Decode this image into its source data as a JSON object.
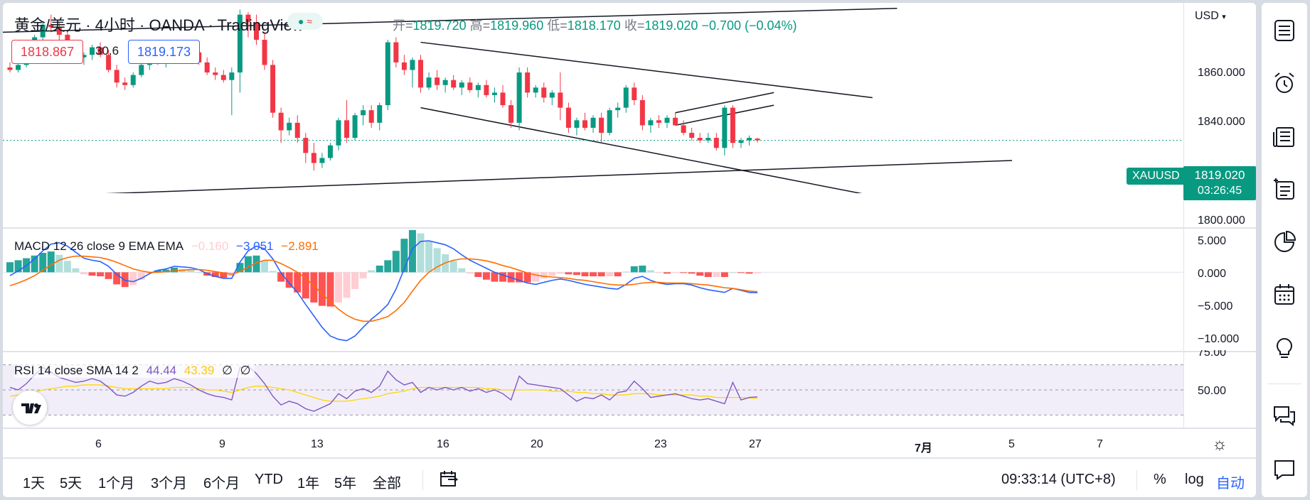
{
  "header": {
    "symbol_title": "黄金/美元 · 4小时 · OANDA · TradingView",
    "ohlc_open_label": "开=",
    "ohlc_open": "1819.720",
    "ohlc_high_label": "高=",
    "ohlc_high": "1819.960",
    "ohlc_low_label": "低=",
    "ohlc_low": "1818.170",
    "ohlc_close_label": "收=",
    "ohlc_close": "1819.020",
    "ohlc_change": "−0.700 (−0.04%)",
    "bid": "1818.867",
    "spread": "30.6",
    "ask": "1819.173",
    "currency": "USD"
  },
  "price_axis": {
    "ticks": [
      "1860.000",
      "1840.000",
      "1800.000"
    ],
    "symbol_tag": "XAUUSD",
    "last_price": "1819.020",
    "countdown": "03:26:45"
  },
  "macd": {
    "legend_name": "MACD 12 26 close 9 EMA EMA",
    "hist_value": "−0.160",
    "macd_value": "−3.051",
    "signal_value": "−2.891",
    "ticks": [
      "5.000",
      "0.000",
      "−5.000",
      "−10.000"
    ]
  },
  "rsi": {
    "legend_name": "RSI 14 close SMA 14 2",
    "rsi_value": "44.44",
    "sma_value": "43.39",
    "extra1": "∅",
    "extra2": "∅",
    "ticks": [
      "75.00",
      "50.00"
    ]
  },
  "time_axis": {
    "labels": [
      "6",
      "9",
      "13",
      "16",
      "20",
      "23",
      "27",
      "7月",
      "5",
      "7"
    ]
  },
  "bottom_bar": {
    "ranges": [
      "1天",
      "5天",
      "1个月",
      "3个月",
      "6个月",
      "YTD",
      "1年",
      "5年",
      "全部"
    ],
    "clock": "09:33:14 (UTC+8)",
    "percent": "%",
    "log": "log",
    "auto": "自动"
  },
  "right_rail": {
    "icons": [
      "watchlist-icon",
      "alarm-clock-icon",
      "news-icon",
      "order-panel-icon",
      "pie-icon",
      "calendar-icon",
      "lightbulb-icon",
      "chat-icon",
      "comment-icon"
    ]
  },
  "colors": {
    "up": "#089981",
    "down": "#f23645",
    "macd": "#2962ff",
    "signal": "#ff6d00",
    "rsi": "#7e57c2",
    "rsi_sma": "#ffd600"
  },
  "chart_data": {
    "type": "candlestick",
    "title": "黄金/美元 · 4小时 · OANDA",
    "x_tick_labels": [
      "6",
      "9",
      "13",
      "16",
      "20",
      "23",
      "27",
      "7月",
      "5",
      "7"
    ],
    "ylim": [
      1798,
      1872
    ],
    "last": 1819.02,
    "candles": [
      {
        "o": 1848,
        "h": 1850,
        "l": 1846,
        "c": 1847
      },
      {
        "o": 1847,
        "h": 1850,
        "l": 1846,
        "c": 1849
      },
      {
        "o": 1849,
        "h": 1856,
        "l": 1848,
        "c": 1855
      },
      {
        "o": 1855,
        "h": 1861,
        "l": 1853,
        "c": 1860
      },
      {
        "o": 1860,
        "h": 1866,
        "l": 1858,
        "c": 1865
      },
      {
        "o": 1865,
        "h": 1869,
        "l": 1862,
        "c": 1864
      },
      {
        "o": 1864,
        "h": 1866,
        "l": 1859,
        "c": 1861
      },
      {
        "o": 1861,
        "h": 1863,
        "l": 1855,
        "c": 1856
      },
      {
        "o": 1856,
        "h": 1858,
        "l": 1850,
        "c": 1852
      },
      {
        "o": 1852,
        "h": 1854,
        "l": 1849,
        "c": 1853
      },
      {
        "o": 1853,
        "h": 1857,
        "l": 1851,
        "c": 1856
      },
      {
        "o": 1856,
        "h": 1858,
        "l": 1852,
        "c": 1853
      },
      {
        "o": 1853,
        "h": 1855,
        "l": 1846,
        "c": 1847
      },
      {
        "o": 1847,
        "h": 1849,
        "l": 1840,
        "c": 1842
      },
      {
        "o": 1842,
        "h": 1844,
        "l": 1839,
        "c": 1841
      },
      {
        "o": 1841,
        "h": 1846,
        "l": 1840,
        "c": 1845
      },
      {
        "o": 1845,
        "h": 1850,
        "l": 1844,
        "c": 1849
      },
      {
        "o": 1849,
        "h": 1853,
        "l": 1847,
        "c": 1852
      },
      {
        "o": 1852,
        "h": 1855,
        "l": 1849,
        "c": 1851
      },
      {
        "o": 1851,
        "h": 1854,
        "l": 1848,
        "c": 1853
      },
      {
        "o": 1853,
        "h": 1857,
        "l": 1851,
        "c": 1856
      },
      {
        "o": 1856,
        "h": 1857,
        "l": 1851,
        "c": 1852
      },
      {
        "o": 1852,
        "h": 1855,
        "l": 1850,
        "c": 1854
      },
      {
        "o": 1854,
        "h": 1856,
        "l": 1849,
        "c": 1850
      },
      {
        "o": 1850,
        "h": 1852,
        "l": 1845,
        "c": 1846
      },
      {
        "o": 1846,
        "h": 1848,
        "l": 1843,
        "c": 1845
      },
      {
        "o": 1845,
        "h": 1847,
        "l": 1842,
        "c": 1843
      },
      {
        "o": 1843,
        "h": 1848,
        "l": 1829,
        "c": 1846
      },
      {
        "o": 1846,
        "h": 1871,
        "l": 1838,
        "c": 1869
      },
      {
        "o": 1869,
        "h": 1870,
        "l": 1860,
        "c": 1866
      },
      {
        "o": 1866,
        "h": 1869,
        "l": 1857,
        "c": 1859
      },
      {
        "o": 1859,
        "h": 1862,
        "l": 1847,
        "c": 1849
      },
      {
        "o": 1849,
        "h": 1851,
        "l": 1828,
        "c": 1830
      },
      {
        "o": 1830,
        "h": 1832,
        "l": 1818,
        "c": 1823
      },
      {
        "o": 1823,
        "h": 1828,
        "l": 1821,
        "c": 1826
      },
      {
        "o": 1826,
        "h": 1829,
        "l": 1818,
        "c": 1820
      },
      {
        "o": 1820,
        "h": 1822,
        "l": 1810,
        "c": 1814
      },
      {
        "o": 1814,
        "h": 1818,
        "l": 1807,
        "c": 1810
      },
      {
        "o": 1810,
        "h": 1814,
        "l": 1808,
        "c": 1812
      },
      {
        "o": 1812,
        "h": 1818,
        "l": 1811,
        "c": 1817
      },
      {
        "o": 1817,
        "h": 1828,
        "l": 1815,
        "c": 1827
      },
      {
        "o": 1827,
        "h": 1835,
        "l": 1818,
        "c": 1820
      },
      {
        "o": 1820,
        "h": 1830,
        "l": 1819,
        "c": 1829
      },
      {
        "o": 1829,
        "h": 1833,
        "l": 1825,
        "c": 1831
      },
      {
        "o": 1831,
        "h": 1833,
        "l": 1824,
        "c": 1826
      },
      {
        "o": 1826,
        "h": 1834,
        "l": 1823,
        "c": 1833
      },
      {
        "o": 1833,
        "h": 1859,
        "l": 1831,
        "c": 1858
      },
      {
        "o": 1858,
        "h": 1860,
        "l": 1848,
        "c": 1850
      },
      {
        "o": 1850,
        "h": 1853,
        "l": 1845,
        "c": 1847
      },
      {
        "o": 1847,
        "h": 1852,
        "l": 1840,
        "c": 1851
      },
      {
        "o": 1851,
        "h": 1853,
        "l": 1838,
        "c": 1840
      },
      {
        "o": 1840,
        "h": 1846,
        "l": 1839,
        "c": 1844
      },
      {
        "o": 1844,
        "h": 1847,
        "l": 1839,
        "c": 1841
      },
      {
        "o": 1841,
        "h": 1844,
        "l": 1838,
        "c": 1843
      },
      {
        "o": 1843,
        "h": 1845,
        "l": 1839,
        "c": 1840
      },
      {
        "o": 1840,
        "h": 1843,
        "l": 1837,
        "c": 1842
      },
      {
        "o": 1842,
        "h": 1844,
        "l": 1838,
        "c": 1839
      },
      {
        "o": 1839,
        "h": 1842,
        "l": 1836,
        "c": 1841
      },
      {
        "o": 1841,
        "h": 1843,
        "l": 1836,
        "c": 1837
      },
      {
        "o": 1837,
        "h": 1840,
        "l": 1834,
        "c": 1838
      },
      {
        "o": 1838,
        "h": 1841,
        "l": 1832,
        "c": 1833
      },
      {
        "o": 1833,
        "h": 1835,
        "l": 1824,
        "c": 1826
      },
      {
        "o": 1826,
        "h": 1848,
        "l": 1823,
        "c": 1846
      },
      {
        "o": 1846,
        "h": 1848,
        "l": 1836,
        "c": 1838
      },
      {
        "o": 1838,
        "h": 1841,
        "l": 1836,
        "c": 1840
      },
      {
        "o": 1840,
        "h": 1842,
        "l": 1834,
        "c": 1836
      },
      {
        "o": 1836,
        "h": 1839,
        "l": 1833,
        "c": 1838
      },
      {
        "o": 1838,
        "h": 1846,
        "l": 1827,
        "c": 1832
      },
      {
        "o": 1832,
        "h": 1834,
        "l": 1822,
        "c": 1824
      },
      {
        "o": 1824,
        "h": 1828,
        "l": 1821,
        "c": 1827
      },
      {
        "o": 1827,
        "h": 1830,
        "l": 1823,
        "c": 1824
      },
      {
        "o": 1824,
        "h": 1829,
        "l": 1822,
        "c": 1828
      },
      {
        "o": 1828,
        "h": 1830,
        "l": 1818,
        "c": 1822
      },
      {
        "o": 1822,
        "h": 1832,
        "l": 1821,
        "c": 1831
      },
      {
        "o": 1831,
        "h": 1834,
        "l": 1828,
        "c": 1832
      },
      {
        "o": 1832,
        "h": 1841,
        "l": 1830,
        "c": 1840
      },
      {
        "o": 1840,
        "h": 1842,
        "l": 1833,
        "c": 1835
      },
      {
        "o": 1835,
        "h": 1837,
        "l": 1823,
        "c": 1825
      },
      {
        "o": 1825,
        "h": 1828,
        "l": 1822,
        "c": 1827
      },
      {
        "o": 1827,
        "h": 1829,
        "l": 1824,
        "c": 1826
      },
      {
        "o": 1826,
        "h": 1829,
        "l": 1824,
        "c": 1828
      },
      {
        "o": 1828,
        "h": 1830,
        "l": 1825,
        "c": 1825
      },
      {
        "o": 1825,
        "h": 1827,
        "l": 1821,
        "c": 1822
      },
      {
        "o": 1822,
        "h": 1824,
        "l": 1819,
        "c": 1820
      },
      {
        "o": 1820,
        "h": 1822,
        "l": 1818,
        "c": 1819
      },
      {
        "o": 1819,
        "h": 1822,
        "l": 1818,
        "c": 1820
      },
      {
        "o": 1820,
        "h": 1822,
        "l": 1815,
        "c": 1816
      },
      {
        "o": 1816,
        "h": 1833,
        "l": 1813,
        "c": 1832
      },
      {
        "o": 1832,
        "h": 1833,
        "l": 1816,
        "c": 1818
      },
      {
        "o": 1818,
        "h": 1820,
        "l": 1816,
        "c": 1819
      },
      {
        "o": 1819,
        "h": 1821,
        "l": 1817,
        "c": 1820
      },
      {
        "o": 1819.72,
        "h": 1819.96,
        "l": 1818.17,
        "c": 1819.02
      }
    ],
    "macd": {
      "ylim": [
        -11.5,
        6.5
      ],
      "macd_line": [
        -0.5,
        0.2,
        1.0,
        2.0,
        3.2,
        4.2,
        4.4,
        3.9,
        3.0,
        2.1,
        1.8,
        1.6,
        0.9,
        -0.3,
        -1.2,
        -1.4,
        -0.9,
        -0.2,
        0.3,
        0.5,
        0.9,
        0.8,
        0.7,
        0.4,
        -0.2,
        -0.6,
        -0.9,
        -0.9,
        1.5,
        3.2,
        3.9,
        3.5,
        2.0,
        -0.1,
        -1.6,
        -3.0,
        -4.8,
        -6.5,
        -8.2,
        -9.5,
        -10.0,
        -10.2,
        -9.5,
        -8.2,
        -7.0,
        -6.0,
        -4.8,
        -2.5,
        0.5,
        3.5,
        4.6,
        4.7,
        4.4,
        4.1,
        3.5,
        2.6,
        1.8,
        1.2,
        0.6,
        0.0,
        -0.4,
        -0.8,
        -1.2,
        -1.6,
        -1.8,
        -1.5,
        -1.2,
        -1.0,
        -1.2,
        -1.5,
        -1.8,
        -2.0,
        -2.2,
        -2.4,
        -2.5,
        -1.8,
        -0.9,
        -0.6,
        -1.2,
        -1.6,
        -1.8,
        -1.7,
        -1.7,
        -1.9,
        -2.3,
        -2.6,
        -2.8,
        -3.0,
        -2.4,
        -2.7,
        -3.0,
        -3.05
      ],
      "signal_line": [
        -2.0,
        -1.6,
        -1.1,
        -0.5,
        0.3,
        1.1,
        1.8,
        2.2,
        2.4,
        2.4,
        2.3,
        2.2,
        1.9,
        1.5,
        1.0,
        0.5,
        0.2,
        0.0,
        0.0,
        0.1,
        0.2,
        0.3,
        0.4,
        0.4,
        0.3,
        0.1,
        -0.1,
        -0.3,
        0.1,
        0.8,
        1.4,
        1.8,
        1.8,
        1.3,
        0.7,
        0.0,
        -0.9,
        -2.0,
        -3.2,
        -4.4,
        -5.5,
        -6.4,
        -7.0,
        -7.3,
        -7.3,
        -7.0,
        -6.6,
        -5.7,
        -4.5,
        -2.8,
        -1.2,
        0.0,
        0.8,
        1.4,
        1.8,
        2.0,
        2.0,
        1.9,
        1.7,
        1.4,
        1.0,
        0.7,
        0.3,
        -0.1,
        -0.4,
        -0.6,
        -0.7,
        -0.8,
        -0.9,
        -1.1,
        -1.2,
        -1.4,
        -1.6,
        -1.8,
        -1.9,
        -1.9,
        -1.8,
        -1.6,
        -1.5,
        -1.5,
        -1.6,
        -1.6,
        -1.6,
        -1.7,
        -1.8,
        -1.9,
        -2.1,
        -2.3,
        -2.4,
        -2.6,
        -2.8,
        -2.89
      ]
    },
    "rsi": {
      "ylim": [
        20,
        80
      ],
      "bands": [
        70,
        50,
        30
      ],
      "rsi_line": [
        52,
        50,
        55,
        62,
        68,
        64,
        60,
        58,
        56,
        57,
        59,
        57,
        52,
        46,
        45,
        48,
        53,
        57,
        55,
        56,
        59,
        57,
        54,
        50,
        47,
        45,
        44,
        42,
        68,
        69,
        63,
        55,
        45,
        38,
        41,
        39,
        35,
        33,
        36,
        39,
        47,
        43,
        49,
        51,
        48,
        53,
        65,
        58,
        54,
        56,
        48,
        52,
        50,
        52,
        50,
        52,
        49,
        51,
        48,
        50,
        47,
        42,
        61,
        55,
        54,
        53,
        52,
        51,
        46,
        41,
        44,
        43,
        46,
        42,
        48,
        49,
        57,
        51,
        44,
        45,
        46,
        47,
        45,
        43,
        42,
        43,
        41,
        39,
        56,
        42,
        44,
        44.44
      ],
      "sma_line": [
        45,
        46,
        47,
        48,
        50,
        51,
        52,
        53,
        53,
        54,
        54,
        54,
        53,
        52,
        51,
        51,
        51,
        51,
        51,
        51,
        52,
        52,
        52,
        51,
        50,
        50,
        49,
        48,
        50,
        52,
        53,
        53,
        52,
        51,
        50,
        48,
        46,
        44,
        42,
        41,
        41,
        41,
        42,
        43,
        44,
        45,
        47,
        48,
        49,
        51,
        52,
        52,
        52,
        52,
        52,
        52,
        52,
        52,
        51,
        51,
        50,
        50,
        50,
        50,
        50,
        50,
        49,
        49,
        49,
        48,
        48,
        47,
        47,
        46,
        46,
        46,
        47,
        47,
        47,
        46,
        46,
        46,
        46,
        46,
        45,
        45,
        44,
        44,
        44,
        44,
        43.5,
        43.39
      ]
    }
  }
}
